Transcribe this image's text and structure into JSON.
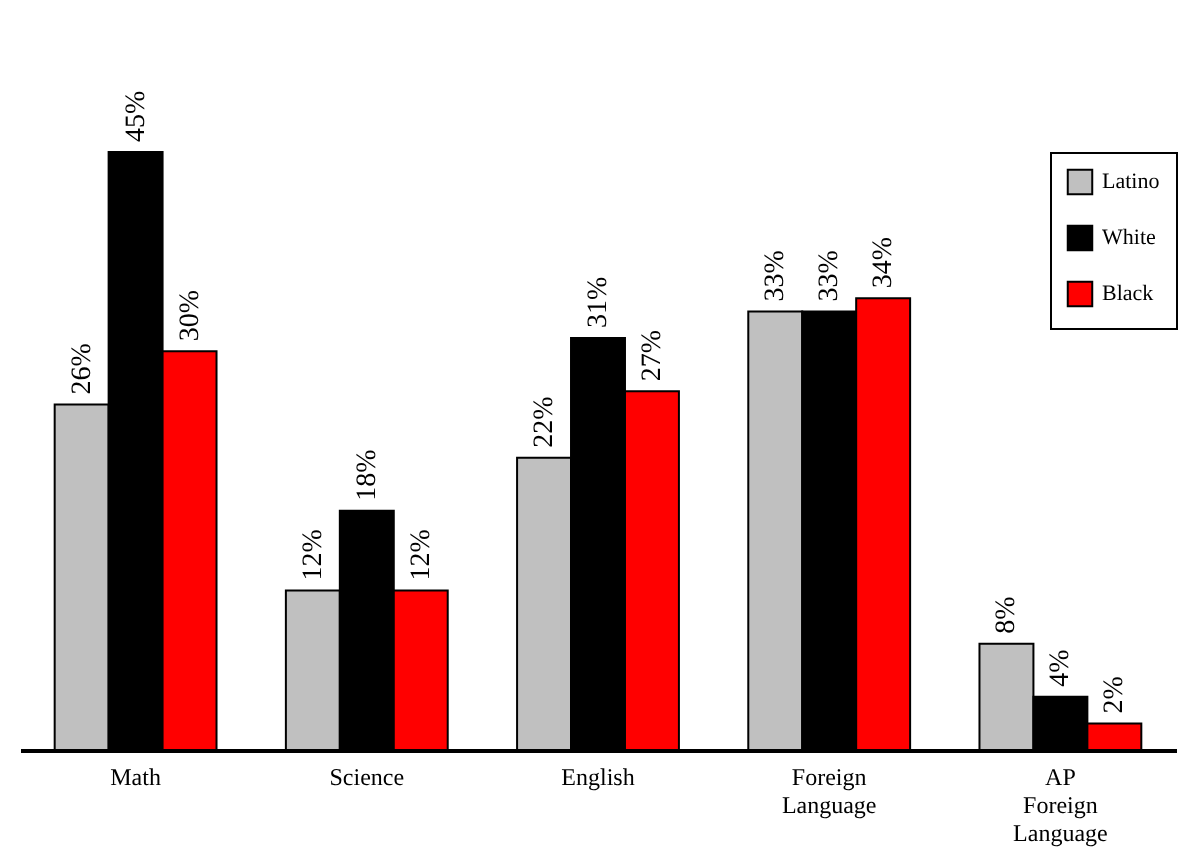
{
  "chart_data": {
    "type": "bar",
    "categories": [
      "Math",
      "Science",
      "English",
      "Foreign Language",
      "AP Foreign Language"
    ],
    "series": [
      {
        "name": "Latino",
        "color": "#c0c0c0",
        "values": [
          26,
          12,
          22,
          33,
          8
        ],
        "value_labels": [
          "26%",
          "12%",
          "22%",
          "33%",
          "8%"
        ]
      },
      {
        "name": "White",
        "color": "#000000",
        "values": [
          45,
          18,
          31,
          33,
          4
        ],
        "value_labels": [
          "45%",
          "18%",
          "31%",
          "33%",
          "4%"
        ]
      },
      {
        "name": "Black",
        "color": "#ff0000",
        "values": [
          30,
          12,
          27,
          34,
          2
        ],
        "value_labels": [
          "30%",
          "12%",
          "27%",
          "34%",
          "2%"
        ]
      }
    ],
    "legend": "top right",
    "grid": false
  }
}
